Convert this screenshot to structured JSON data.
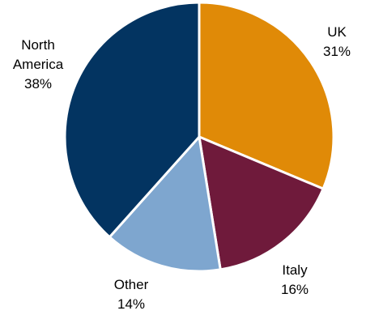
{
  "chart_data": {
    "type": "pie",
    "slices": [
      {
        "label_lines": [
          "UK"
        ],
        "value_text": "31%",
        "value": 31,
        "color": "#E08A07"
      },
      {
        "label_lines": [
          "Italy"
        ],
        "value_text": "16%",
        "value": 16,
        "color": "#6F1A3B"
      },
      {
        "label_lines": [
          "Other"
        ],
        "value_text": "14%",
        "value": 14,
        "color": "#7EA6CF"
      },
      {
        "label_lines": [
          "North",
          "America"
        ],
        "value_text": "38%",
        "value": 38,
        "color": "#033461"
      }
    ],
    "legend": "none",
    "start_angle": "12 o'clock",
    "direction": "clockwise",
    "slice_separator_color": "#FFFFFF"
  }
}
